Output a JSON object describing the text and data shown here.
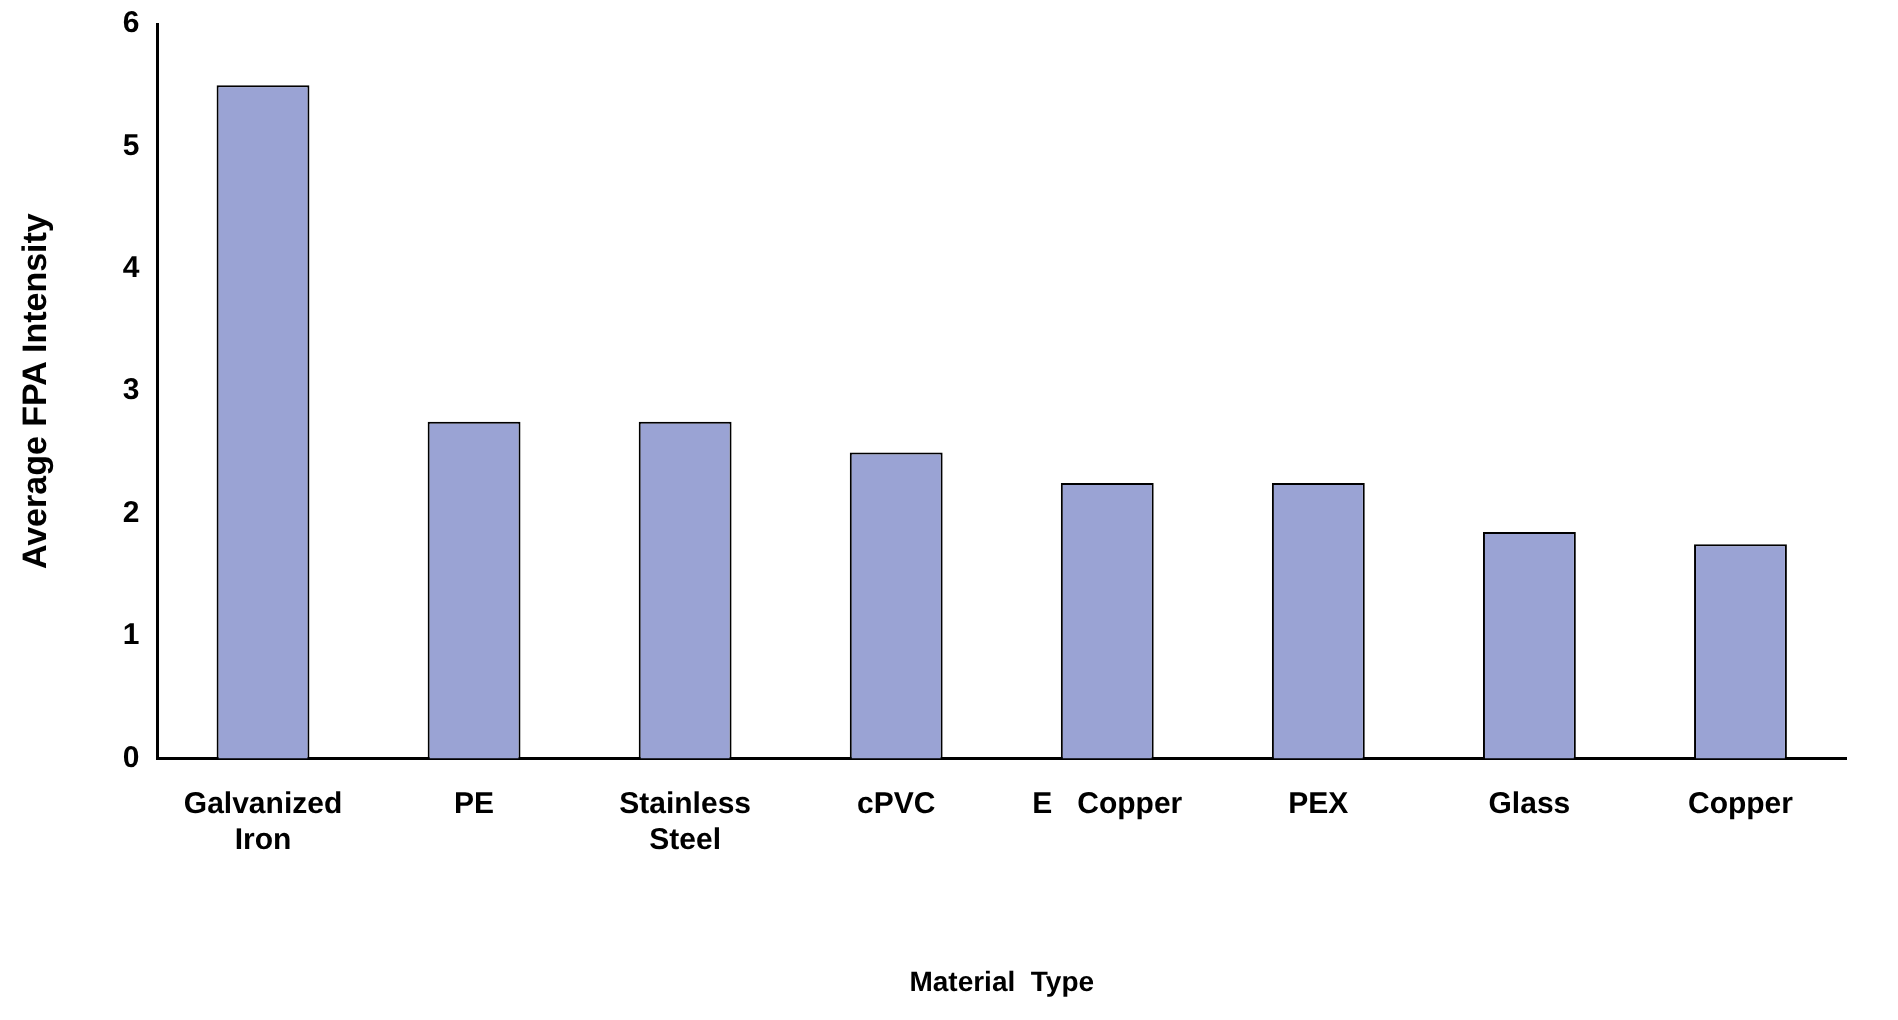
{
  "chart_data": {
    "type": "bar",
    "xlabel": "Material  Type",
    "ylabel": "Average FPA Intensity",
    "categories": [
      "Galvanized Iron",
      "PE",
      "Stainless Steel",
      "cPVC",
      "E   Copper",
      "PEX",
      "Glass",
      "Copper"
    ],
    "values": [
      5.5,
      2.75,
      2.75,
      2.5,
      2.25,
      2.25,
      1.85,
      1.75
    ],
    "color": "#9aa3d4",
    "ylim": [
      0,
      6
    ],
    "yticks": [
      0,
      1,
      2,
      3,
      4,
      5,
      6
    ],
    "grid": false,
    "legend": false
  }
}
